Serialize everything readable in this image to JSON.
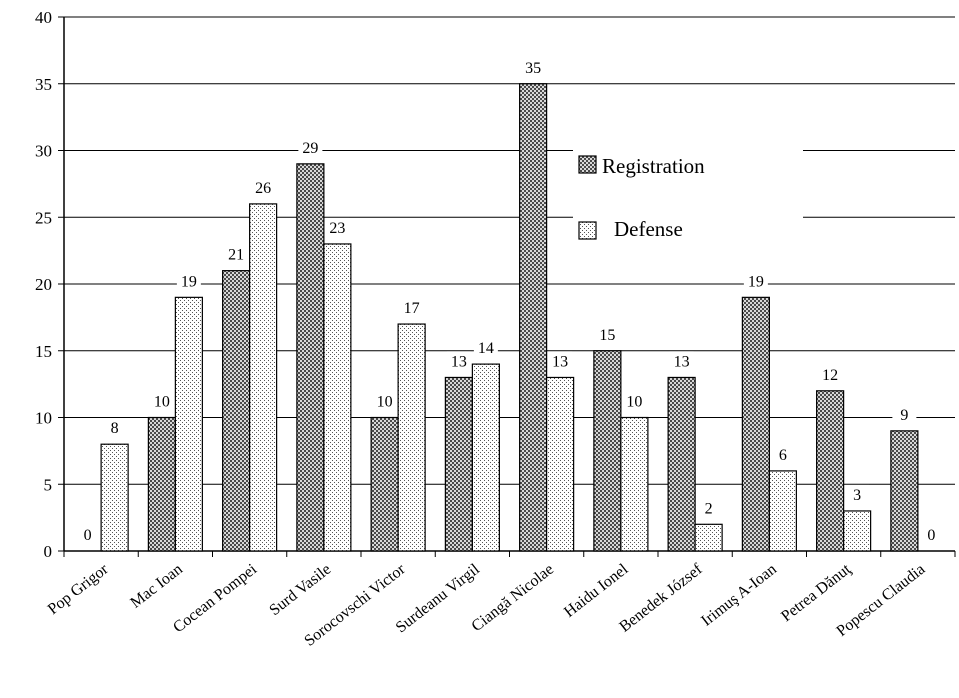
{
  "chart_data": {
    "type": "bar",
    "title": "",
    "xlabel": "",
    "ylabel": "",
    "ylim": [
      0,
      40
    ],
    "yticks": [
      0,
      5,
      10,
      15,
      20,
      25,
      30,
      35,
      40
    ],
    "grid": true,
    "legend_position": "right",
    "categories": [
      "Pop Grigor",
      "Mac Ioan",
      "Cocean Pompei",
      "Surd Vasile",
      "Sorocovschi Victor",
      "Surdeanu Virgil",
      "Ciangă Nicolae",
      "Haidu Ionel",
      "Benedek József",
      "Irimuş A-Ioan",
      "Petrea Dănuţ",
      "Popescu Claudia"
    ],
    "series": [
      {
        "name": "Registration",
        "values": [
          0,
          10,
          21,
          29,
          10,
          13,
          35,
          15,
          13,
          19,
          12,
          9
        ],
        "pattern": "dark-checker"
      },
      {
        "name": "Defense",
        "values": [
          8,
          19,
          26,
          23,
          17,
          14,
          13,
          10,
          2,
          6,
          3,
          0
        ],
        "pattern": "light-dots"
      }
    ]
  }
}
